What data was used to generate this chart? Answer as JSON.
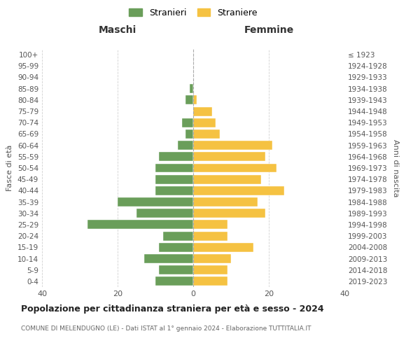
{
  "age_groups": [
    "0-4",
    "5-9",
    "10-14",
    "15-19",
    "20-24",
    "25-29",
    "30-34",
    "35-39",
    "40-44",
    "45-49",
    "50-54",
    "55-59",
    "60-64",
    "65-69",
    "70-74",
    "75-79",
    "80-84",
    "85-89",
    "90-94",
    "95-99",
    "100+"
  ],
  "birth_years": [
    "2019-2023",
    "2014-2018",
    "2009-2013",
    "2004-2008",
    "1999-2003",
    "1994-1998",
    "1989-1993",
    "1984-1988",
    "1979-1983",
    "1974-1978",
    "1969-1973",
    "1964-1968",
    "1959-1963",
    "1954-1958",
    "1949-1953",
    "1944-1948",
    "1939-1943",
    "1934-1938",
    "1929-1933",
    "1924-1928",
    "≤ 1923"
  ],
  "maschi": [
    10,
    9,
    13,
    9,
    8,
    28,
    15,
    20,
    10,
    10,
    10,
    9,
    4,
    2,
    3,
    0,
    2,
    1,
    0,
    0,
    0
  ],
  "femmine": [
    9,
    9,
    10,
    16,
    9,
    9,
    19,
    17,
    24,
    18,
    22,
    19,
    21,
    7,
    6,
    5,
    1,
    0,
    0,
    0,
    0
  ],
  "color_maschi": "#6a9e5a",
  "color_femmine": "#f5c242",
  "title": "Popolazione per cittadinanza straniera per età e sesso - 2024",
  "subtitle": "COMUNE DI MELENDUGNO (LE) - Dati ISTAT al 1° gennaio 2024 - Elaborazione TUTTITALIA.IT",
  "xlabel_left": "Maschi",
  "xlabel_right": "Femmine",
  "ylabel_left": "Fasce di età",
  "ylabel_right": "Anni di nascita",
  "legend_maschi": "Stranieri",
  "legend_femmine": "Straniere",
  "xlim": 40,
  "background_color": "#ffffff",
  "grid_color": "#cccccc"
}
